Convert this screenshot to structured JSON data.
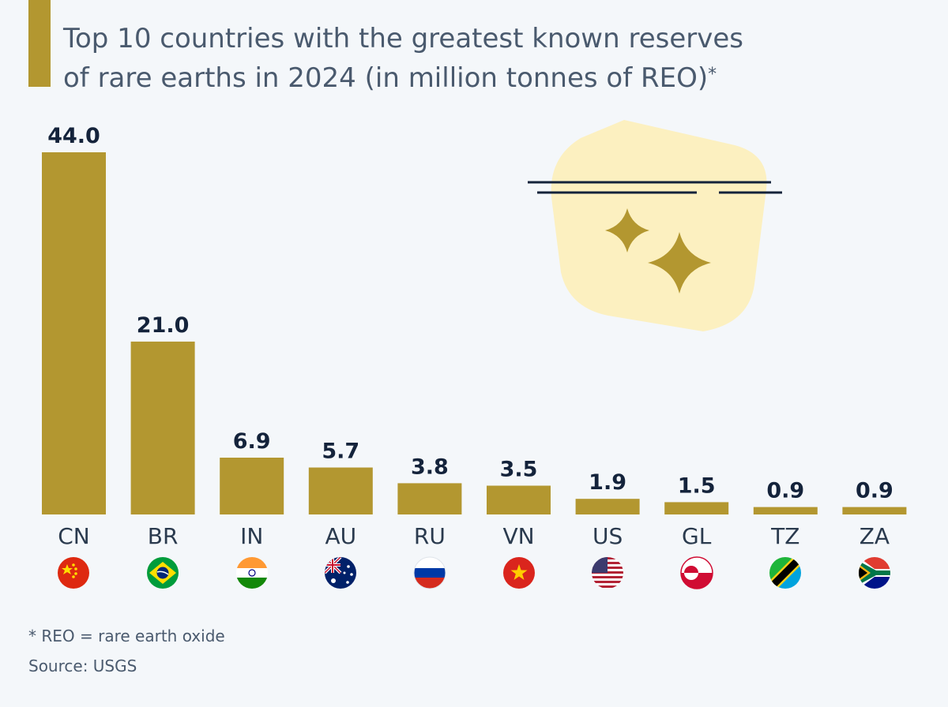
{
  "title": {
    "line1": "Top 10 countries with the greatest known reserves",
    "line2": "of rare earths in 2024 (in million tonnes of REO)",
    "asterisk": "*"
  },
  "chart_data": {
    "type": "bar",
    "title": "Top 10 countries with the greatest known reserves of rare earths in 2024 (in million tonnes of REO)*",
    "xlabel": "",
    "ylabel": "",
    "ylim": [
      0,
      44
    ],
    "grid": false,
    "categories": [
      "CN",
      "BR",
      "IN",
      "AU",
      "RU",
      "VN",
      "US",
      "GL",
      "TZ",
      "ZA"
    ],
    "values": [
      44.0,
      21.0,
      6.9,
      5.7,
      3.8,
      3.5,
      1.9,
      1.5,
      0.9,
      0.9
    ],
    "value_labels": [
      "44.0",
      "21.0",
      "6.9",
      "5.7",
      "3.8",
      "3.5",
      "1.9",
      "1.5",
      "0.9",
      "0.9"
    ],
    "flags": [
      "china-flag-icon",
      "brazil-flag-icon",
      "india-flag-icon",
      "australia-flag-icon",
      "russia-flag-icon",
      "vietnam-flag-icon",
      "usa-flag-icon",
      "greenland-flag-icon",
      "tanzania-flag-icon",
      "south-africa-flag-icon"
    ],
    "bar_color": "#b39730"
  },
  "footnote": "* REO = rare earth oxide",
  "source": "Source: USGS",
  "colors": {
    "accent": "#b39730",
    "background": "#f4f7fa",
    "text": "#4a5a6e",
    "value_text": "#14233b",
    "decoration_bg": "#fcf0c0"
  }
}
